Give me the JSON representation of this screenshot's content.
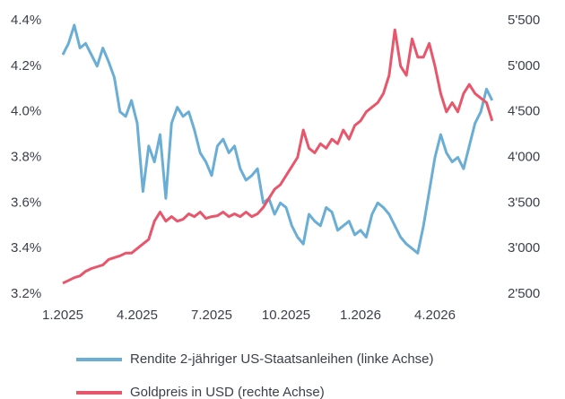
{
  "chart_data": {
    "type": "line",
    "categories": [
      "1.2025",
      null,
      null,
      null,
      null,
      null,
      null,
      null,
      null,
      null,
      null,
      null,
      null,
      "4.2025",
      null,
      null,
      null,
      null,
      null,
      null,
      null,
      null,
      null,
      null,
      null,
      null,
      "7.2025",
      null,
      null,
      null,
      null,
      null,
      null,
      null,
      null,
      null,
      null,
      null,
      null,
      "10.2025",
      null,
      null,
      null,
      null,
      null,
      null,
      null,
      null,
      null,
      null,
      null,
      null,
      "1.2026",
      null,
      null,
      null,
      null,
      null,
      null,
      null,
      null,
      null,
      null,
      null,
      null,
      "4.2026",
      null,
      null,
      null,
      null,
      null,
      null,
      null,
      null,
      null,
      null
    ],
    "series": [
      {
        "name": "Rendite 2-jähriger US-Staatsanleihen (linke Achse)",
        "color": "#6aaed6",
        "values": [
          4.25,
          4.3,
          4.38,
          4.28,
          4.3,
          4.25,
          4.2,
          4.28,
          4.22,
          4.15,
          4.0,
          3.98,
          4.05,
          3.95,
          3.65,
          3.85,
          3.78,
          3.9,
          3.62,
          3.95,
          4.02,
          3.98,
          4.0,
          3.92,
          3.82,
          3.78,
          3.72,
          3.85,
          3.88,
          3.82,
          3.85,
          3.75,
          3.7,
          3.72,
          3.75,
          3.6,
          3.62,
          3.55,
          3.6,
          3.58,
          3.5,
          3.45,
          3.42,
          3.55,
          3.52,
          3.5,
          3.58,
          3.56,
          3.48,
          3.5,
          3.52,
          3.46,
          3.48,
          3.45,
          3.55,
          3.6,
          3.58,
          3.55,
          3.5,
          3.45,
          3.42,
          3.4,
          3.38,
          3.5,
          3.65,
          3.8,
          3.9,
          3.82,
          3.78,
          3.8,
          3.75,
          3.85,
          3.95,
          4.0,
          4.1,
          4.05
        ]
      },
      {
        "name": "Goldpreis in USD (rechte Achse)",
        "color": "#e8566c",
        "axis": "y2",
        "values": [
          2620,
          2650,
          2680,
          2700,
          2750,
          2780,
          2800,
          2820,
          2880,
          2900,
          2920,
          2950,
          2950,
          3000,
          3050,
          3100,
          3300,
          3400,
          3300,
          3350,
          3300,
          3320,
          3380,
          3350,
          3400,
          3330,
          3350,
          3360,
          3400,
          3350,
          3380,
          3350,
          3400,
          3350,
          3380,
          3450,
          3550,
          3650,
          3700,
          3800,
          3900,
          4000,
          4300,
          4100,
          4050,
          4150,
          4100,
          4200,
          4150,
          4300,
          4200,
          4350,
          4400,
          4500,
          4550,
          4600,
          4700,
          4900,
          5400,
          5000,
          4900,
          5300,
          5100,
          5100,
          5250,
          5000,
          4700,
          4500,
          4600,
          4500,
          4700,
          4800,
          4700,
          4650,
          4600,
          4400
        ]
      }
    ],
    "ylim": [
      3.2,
      4.4
    ],
    "yticks": [
      {
        "value": 3.2,
        "label": "3.2%"
      },
      {
        "value": 3.4,
        "label": "3.4%"
      },
      {
        "value": 3.6,
        "label": "3.6%"
      },
      {
        "value": 3.8,
        "label": "3.8%"
      },
      {
        "value": 4.0,
        "label": "4.0%"
      },
      {
        "value": 4.2,
        "label": "4.2%"
      },
      {
        "value": 4.4,
        "label": "4.4%"
      }
    ],
    "y2lim": [
      2500,
      5500
    ],
    "y2ticks": [
      {
        "value": 2500,
        "label": "2'500"
      },
      {
        "value": 3000,
        "label": "3'000"
      },
      {
        "value": 3500,
        "label": "3'500"
      },
      {
        "value": 4000,
        "label": "4'000"
      },
      {
        "value": 4500,
        "label": "4'500"
      },
      {
        "value": 5000,
        "label": "5'000"
      },
      {
        "value": 5500,
        "label": "5'500"
      }
    ],
    "grid": false
  }
}
